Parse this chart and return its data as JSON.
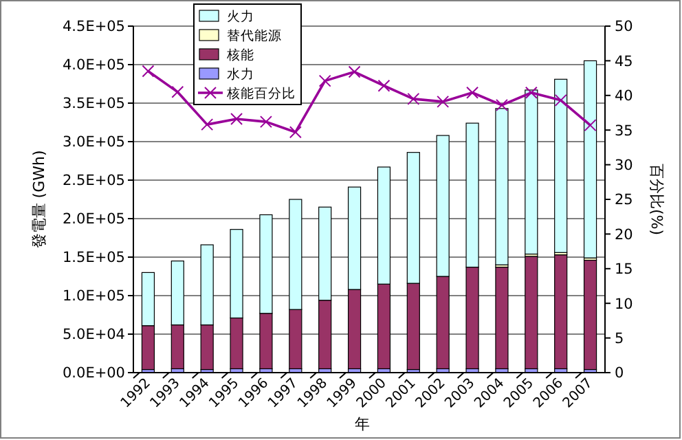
{
  "chart_data": {
    "type": "bar",
    "stacked": true,
    "xlabel": "年",
    "ylabel": "發電量 (GWh)",
    "y2label": "百分比(%)",
    "categories": [
      "1992",
      "1993",
      "1994",
      "1995",
      "1996",
      "1997",
      "1998",
      "1999",
      "2000",
      "2001",
      "2002",
      "2003",
      "2004",
      "2005",
      "2006",
      "2007"
    ],
    "series": [
      {
        "name": "水力",
        "color": "#9999ff",
        "values": [
          4000,
          5000,
          4000,
          5000,
          5000,
          5000,
          5000,
          5000,
          5000,
          4000,
          5000,
          5000,
          5000,
          5000,
          5000,
          4000
        ]
      },
      {
        "name": "核能",
        "color": "#993366",
        "values": [
          57000,
          57000,
          58000,
          66000,
          72000,
          77000,
          89000,
          103000,
          110000,
          112000,
          120000,
          132000,
          132000,
          146000,
          148000,
          142000
        ]
      },
      {
        "name": "替代能源",
        "color": "#ffffcc",
        "values": [
          0,
          0,
          0,
          0,
          0,
          0,
          0,
          0,
          0,
          0,
          0,
          0,
          3000,
          3000,
          3000,
          3000
        ]
      },
      {
        "name": "火力",
        "color": "#ccffff",
        "values": [
          69000,
          83000,
          104000,
          115000,
          128000,
          143000,
          121000,
          133000,
          152000,
          170000,
          183000,
          187000,
          203000,
          213000,
          225000,
          256000
        ]
      },
      {
        "name": "核能百分比",
        "type": "line",
        "axis": "y2",
        "color": "#990099",
        "marker": "cross",
        "values": [
          43.5,
          40.5,
          35.8,
          36.6,
          36.2,
          34.7,
          42.1,
          43.4,
          41.4,
          39.5,
          39.1,
          40.4,
          38.6,
          40.4,
          39.3,
          35.7
        ]
      }
    ],
    "ylim": [
      0,
      450000
    ],
    "yticks": [
      {
        "value": 0,
        "label": "0.0E+00"
      },
      {
        "value": 50000,
        "label": "5.0E+04"
      },
      {
        "value": 100000,
        "label": "1.0E+05"
      },
      {
        "value": 150000,
        "label": "1.5E+05"
      },
      {
        "value": 200000,
        "label": "2.0E+05"
      },
      {
        "value": 250000,
        "label": "2.5E+05"
      },
      {
        "value": 300000,
        "label": "3.0E+05"
      },
      {
        "value": 350000,
        "label": "3.5E+05"
      },
      {
        "value": 400000,
        "label": "4.0E+05"
      },
      {
        "value": 450000,
        "label": "4.5E+05"
      }
    ],
    "y2lim": [
      0,
      50
    ],
    "y2ticks": [
      0,
      5,
      10,
      15,
      20,
      25,
      30,
      35,
      40,
      45,
      50
    ],
    "grid": "y",
    "legend": "top"
  }
}
